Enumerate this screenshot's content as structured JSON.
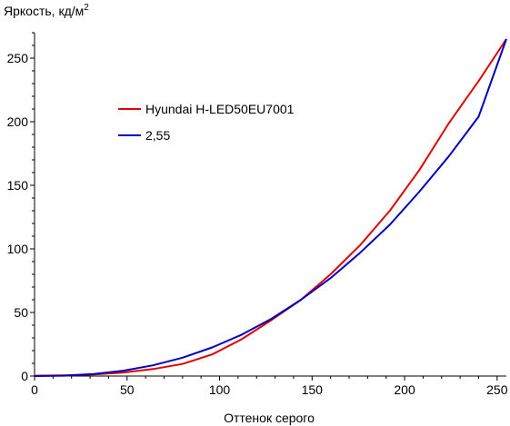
{
  "chart_data": {
    "type": "line",
    "title": "",
    "xlabel": "Оттенок серого",
    "ylabel": "Яркость, кд/м",
    "ylabel_superscript": "2",
    "xlim": [
      0,
      255
    ],
    "ylim": [
      0,
      270
    ],
    "x_ticks": [
      0,
      50,
      100,
      150,
      200,
      250
    ],
    "y_ticks": [
      0,
      50,
      100,
      150,
      200,
      250
    ],
    "grid": false,
    "legend_position": "upper-left",
    "series": [
      {
        "name": "Hyundai H-LED50EU7001",
        "color": "#e00000",
        "x": [
          0,
          16,
          32,
          48,
          64,
          80,
          96,
          112,
          128,
          144,
          160,
          176,
          192,
          208,
          224,
          240,
          255
        ],
        "y": [
          0.3,
          0.5,
          1.2,
          2.8,
          5.5,
          9.5,
          17,
          29,
          44,
          60,
          80,
          103,
          130,
          162,
          199,
          232,
          265
        ]
      },
      {
        "name": "2,55",
        "color": "#0000c0",
        "x": [
          0,
          16,
          32,
          48,
          64,
          80,
          96,
          112,
          128,
          144,
          160,
          176,
          192,
          208,
          224,
          240,
          255
        ],
        "y": [
          0,
          0.3,
          1.6,
          4.2,
          8.4,
          14.4,
          22.5,
          32.6,
          45,
          60,
          77,
          97,
          119,
          145,
          173,
          204,
          265
        ]
      }
    ]
  }
}
